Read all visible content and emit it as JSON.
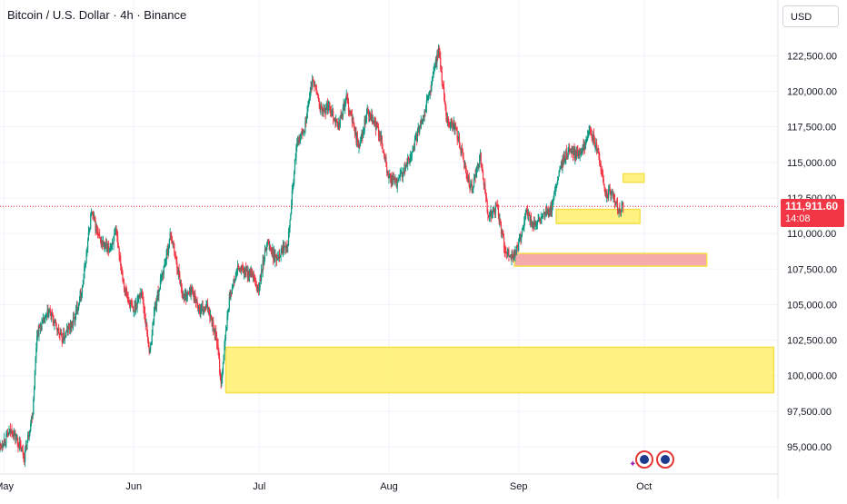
{
  "header": {
    "title": "Bitcoin / U.S. Dollar · 4h · Binance",
    "currency": "USD"
  },
  "current_price": {
    "value": "111,911.60",
    "countdown": "14:08",
    "price": 111911.6
  },
  "colors": {
    "up": "#089981",
    "down": "#f23645",
    "zone_yellow": "#fff176",
    "zone_pink": "#f5a6a6",
    "grid": "#f0f3fa"
  },
  "chart_data": {
    "type": "candlestick",
    "title": "Bitcoin / U.S. Dollar · 4h · Binance",
    "y_axis": {
      "ticks": [
        95000,
        97500,
        100000,
        102500,
        105000,
        107500,
        110000,
        112500,
        115000,
        117500,
        120000,
        122500
      ],
      "tick_labels": [
        "95,000.00",
        "97,500.00",
        "100,000.00",
        "102,500.00",
        "105,000.00",
        "107,500.00",
        "110,000.00",
        "112,500.00",
        "115,000.00",
        "117,500.00",
        "120,000.00",
        "122,500.00"
      ],
      "range": [
        93500,
        126000
      ]
    },
    "x_axis": {
      "tick_labels": [
        "May",
        "Jun",
        "Jul",
        "Aug",
        "Sep",
        "Oct"
      ],
      "tick_dates": [
        "2025-05-01",
        "2025-06-01",
        "2025-07-01",
        "2025-08-01",
        "2025-09-01",
        "2025-10-01"
      ],
      "range": [
        "2025-04-30",
        "2025-11-02"
      ]
    },
    "price_path": [
      [
        "2025-04-30",
        95000
      ],
      [
        "2025-05-03",
        96200
      ],
      [
        "2025-05-06",
        94300
      ],
      [
        "2025-05-08",
        97500
      ],
      [
        "2025-05-09",
        103000
      ],
      [
        "2025-05-12",
        104500
      ],
      [
        "2025-05-15",
        102500
      ],
      [
        "2025-05-18",
        104000
      ],
      [
        "2025-05-20",
        106500
      ],
      [
        "2025-05-22",
        111500
      ],
      [
        "2025-05-24",
        109500
      ],
      [
        "2025-05-26",
        108800
      ],
      [
        "2025-05-28",
        110000
      ],
      [
        "2025-05-30",
        106000
      ],
      [
        "2025-06-01",
        104500
      ],
      [
        "2025-06-03",
        106000
      ],
      [
        "2025-06-05",
        101500
      ],
      [
        "2025-06-06",
        104500
      ],
      [
        "2025-06-09",
        108500
      ],
      [
        "2025-06-10",
        110000
      ],
      [
        "2025-06-13",
        105500
      ],
      [
        "2025-06-15",
        106000
      ],
      [
        "2025-06-17",
        104500
      ],
      [
        "2025-06-19",
        104800
      ],
      [
        "2025-06-21",
        102500
      ],
      [
        "2025-06-22",
        99500
      ],
      [
        "2025-06-24",
        105500
      ],
      [
        "2025-06-26",
        107500
      ],
      [
        "2025-06-29",
        107200
      ],
      [
        "2025-07-01",
        106000
      ],
      [
        "2025-07-03",
        109500
      ],
      [
        "2025-07-05",
        108200
      ],
      [
        "2025-07-08",
        109500
      ],
      [
        "2025-07-10",
        116000
      ],
      [
        "2025-07-12",
        117500
      ],
      [
        "2025-07-14",
        121000
      ],
      [
        "2025-07-16",
        118500
      ],
      [
        "2025-07-18",
        119000
      ],
      [
        "2025-07-20",
        117500
      ],
      [
        "2025-07-22",
        119500
      ],
      [
        "2025-07-25",
        116000
      ],
      [
        "2025-07-27",
        118500
      ],
      [
        "2025-07-30",
        117000
      ],
      [
        "2025-08-01",
        114000
      ],
      [
        "2025-08-03",
        113500
      ],
      [
        "2025-08-05",
        114500
      ],
      [
        "2025-08-07",
        116000
      ],
      [
        "2025-08-09",
        118000
      ],
      [
        "2025-08-11",
        120000
      ],
      [
        "2025-08-13",
        123000
      ],
      [
        "2025-08-15",
        118000
      ],
      [
        "2025-08-17",
        117500
      ],
      [
        "2025-08-19",
        115000
      ],
      [
        "2025-08-21",
        113000
      ],
      [
        "2025-08-23",
        115500
      ],
      [
        "2025-08-25",
        111000
      ],
      [
        "2025-08-27",
        112000
      ],
      [
        "2025-08-29",
        108500
      ],
      [
        "2025-08-31",
        108500
      ],
      [
        "2025-09-01",
        109000
      ],
      [
        "2025-09-03",
        111500
      ],
      [
        "2025-09-05",
        110500
      ],
      [
        "2025-09-07",
        111200
      ],
      [
        "2025-09-09",
        111600
      ],
      [
        "2025-09-11",
        114500
      ],
      [
        "2025-09-13",
        115800
      ],
      [
        "2025-09-15",
        115500
      ],
      [
        "2025-09-17",
        116200
      ],
      [
        "2025-09-18",
        117500
      ],
      [
        "2025-09-20",
        115800
      ],
      [
        "2025-09-22",
        112800
      ],
      [
        "2025-09-24",
        112600
      ],
      [
        "2025-09-25",
        111500
      ],
      [
        "2025-09-26",
        111912
      ]
    ],
    "zones": [
      {
        "color": "yellow",
        "start": "2025-06-23",
        "end": "2025-11-01",
        "low": 98800,
        "high": 102000
      },
      {
        "color": "pink",
        "start": "2025-08-31",
        "end": "2025-10-16",
        "low": 107700,
        "high": 108600
      },
      {
        "color": "yellow",
        "start": "2025-09-10",
        "end": "2025-09-30",
        "low": 110700,
        "high": 111700
      },
      {
        "color": "yellow",
        "start": "2025-09-26",
        "end": "2025-10-01",
        "low": 113600,
        "high": 114200
      }
    ]
  }
}
